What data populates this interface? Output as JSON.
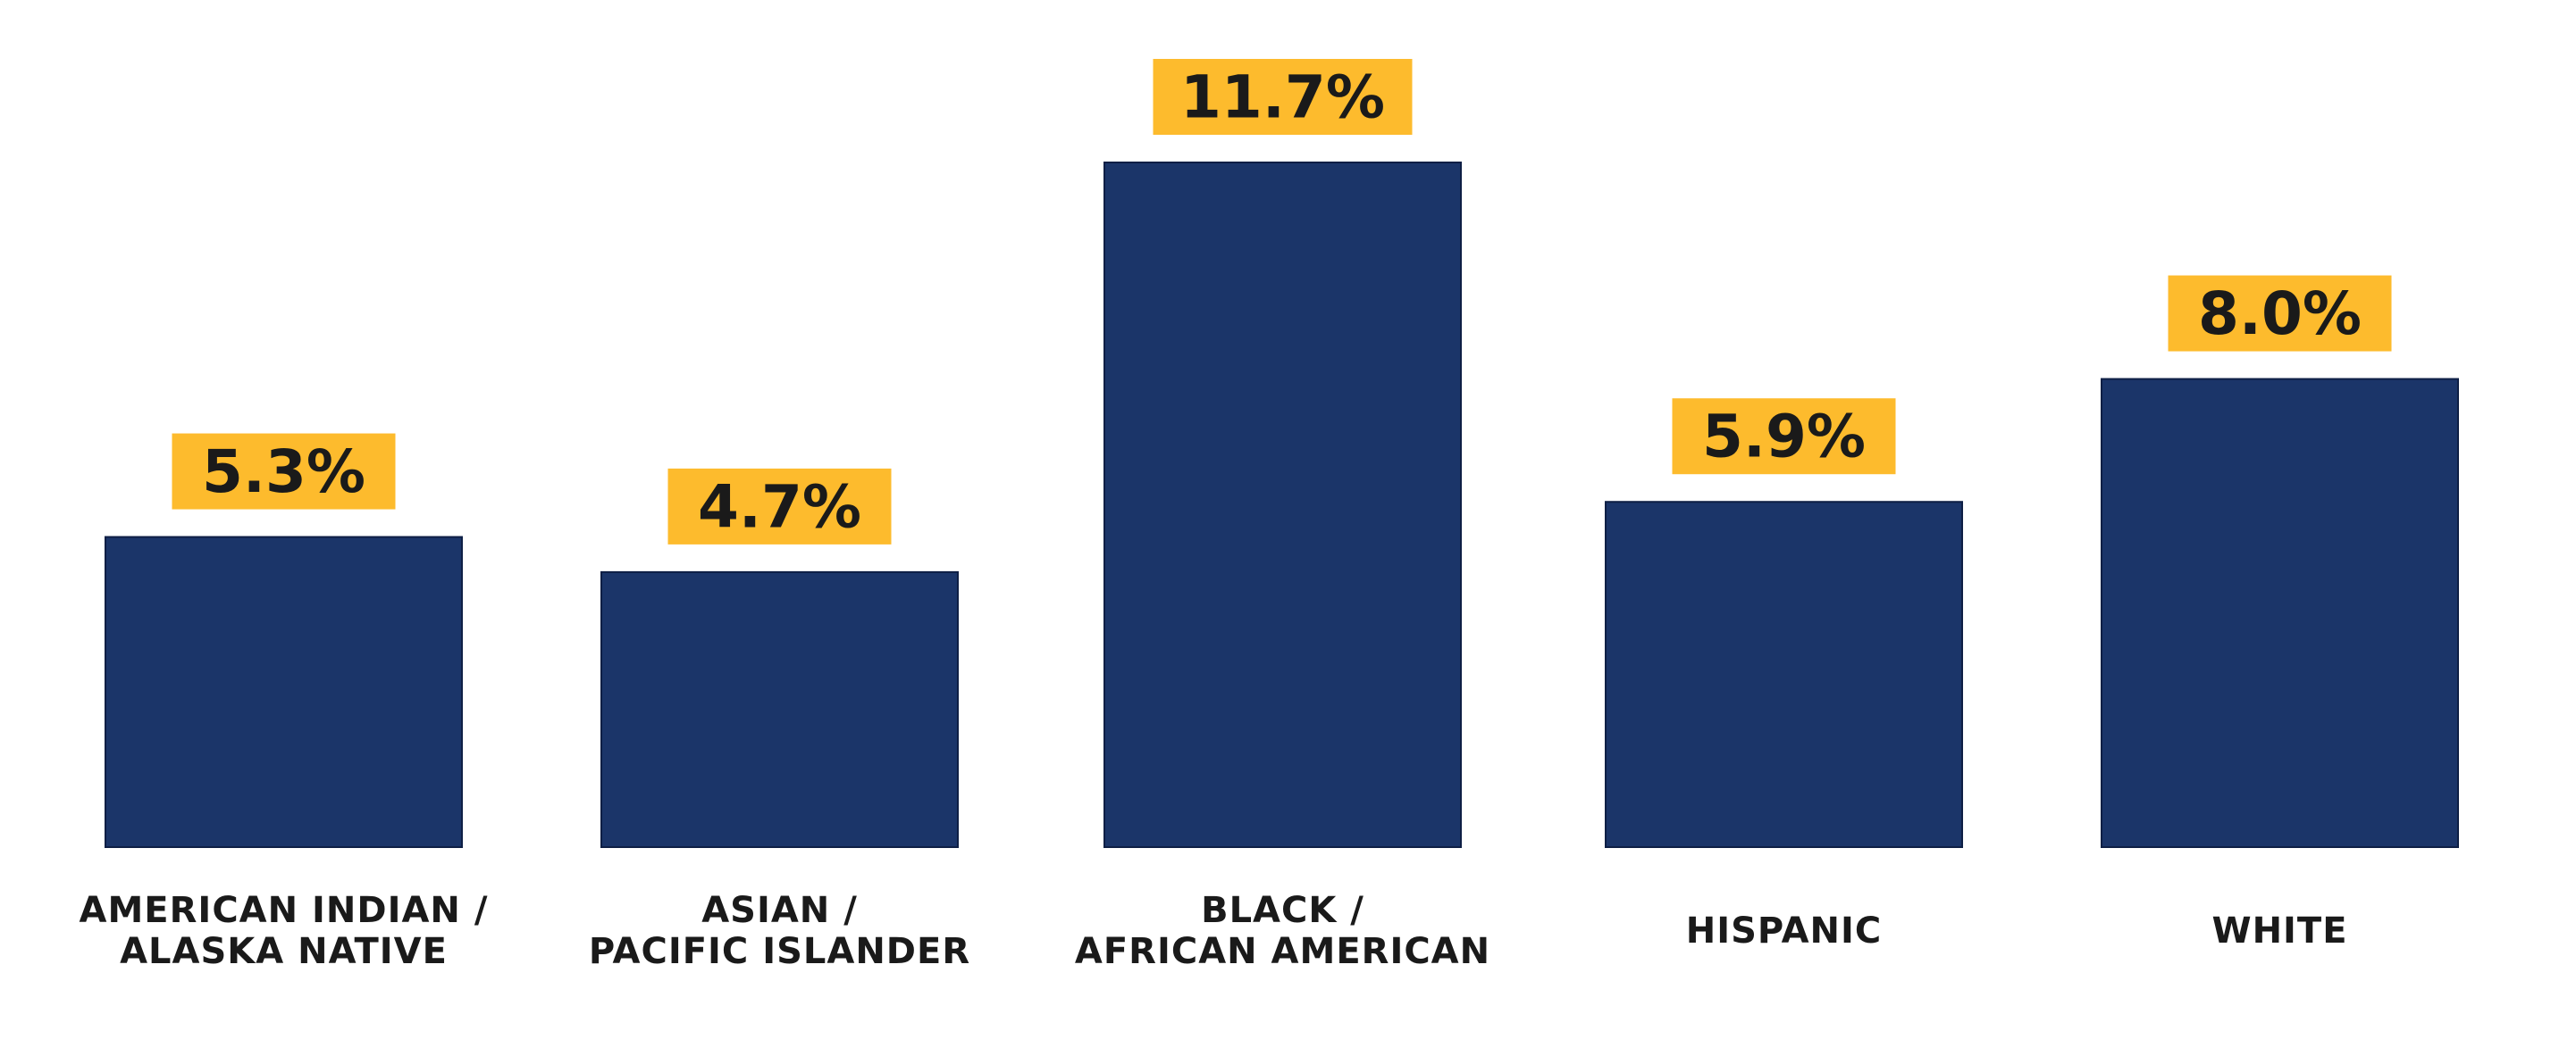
{
  "chart_data": {
    "type": "bar",
    "categories": [
      "AMERICAN INDIAN /\nALASKA NATIVE",
      "ASIAN /\nPACIFIC ISLANDER",
      "BLACK /\nAFRICAN AMERICAN",
      "HISPANIC",
      "WHITE"
    ],
    "values": [
      5.3,
      4.7,
      11.7,
      5.9,
      8.0
    ],
    "value_labels": [
      "5.3%",
      "4.7%",
      "11.7%",
      "5.9%",
      "8.0%"
    ],
    "color": "#1b3569",
    "label_color": "#fdbb2d"
  }
}
